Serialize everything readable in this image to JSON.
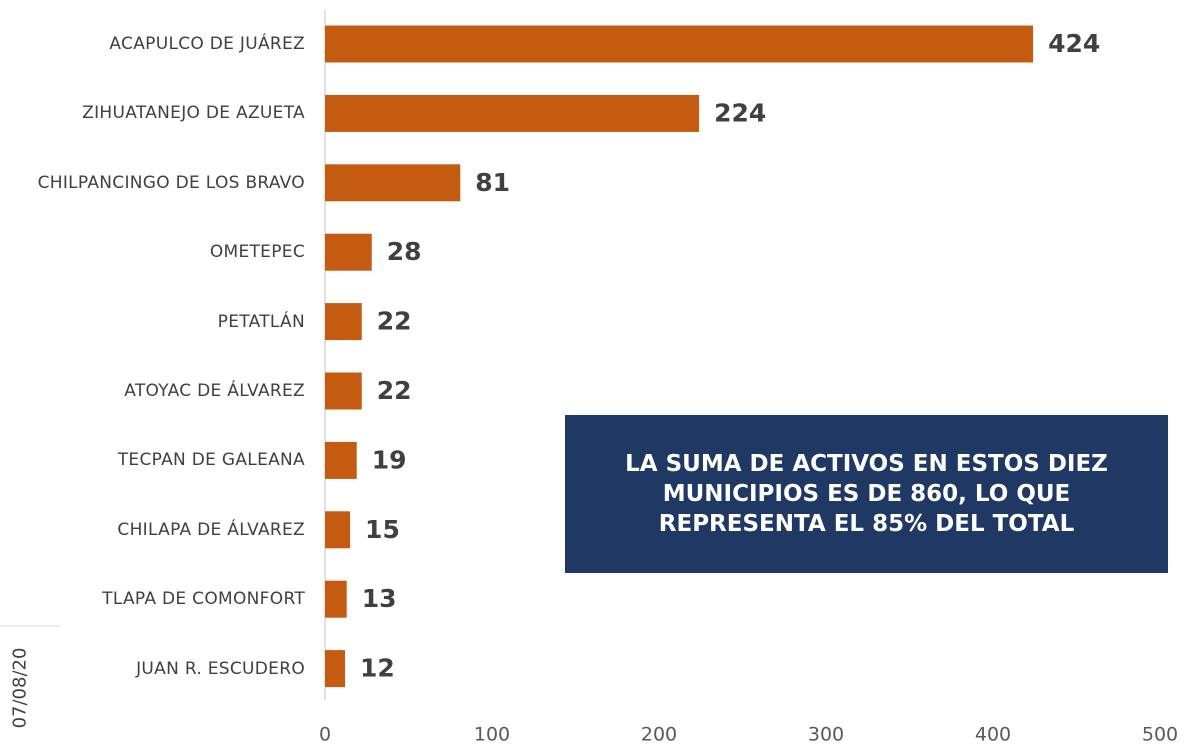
{
  "chart_data": {
    "type": "bar",
    "orientation": "horizontal",
    "categories": [
      "ACAPULCO DE JUÁREZ",
      "ZIHUATANEJO DE AZUETA",
      "CHILPANCINGO DE LOS BRAVO",
      "OMETEPEC",
      "PETATLÁN",
      "ATOYAC DE ÁLVAREZ",
      "TECPAN DE GALEANA",
      "CHILAPA DE ÁLVAREZ",
      "TLAPA DE COMONFORT",
      "JUAN R. ESCUDERO"
    ],
    "values": [
      424,
      224,
      81,
      28,
      22,
      22,
      19,
      15,
      13,
      12
    ],
    "color": "#c55a11",
    "xlim": [
      0,
      500
    ],
    "xticks": [
      0,
      100,
      200,
      300,
      400,
      500
    ],
    "annotation": "LA SUMA DE ACTIVOS EN ESTOS DIEZ MUNICIPIOS ES DE 860, LO QUE REPRESENTA EL 85% DEL TOTAL",
    "date": "07/08/20"
  }
}
